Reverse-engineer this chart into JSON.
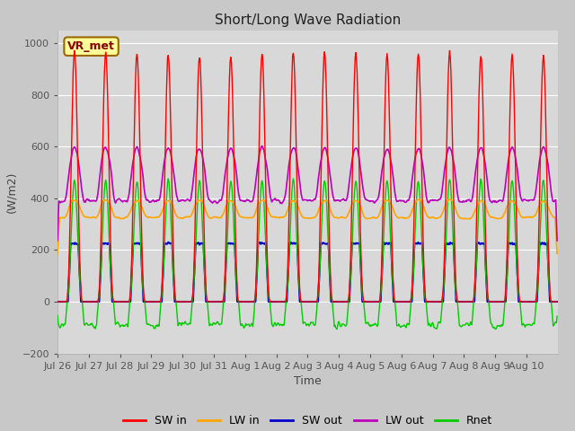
{
  "title": "Short/Long Wave Radiation",
  "ylabel": "(W/m2)",
  "xlabel": "Time",
  "ylim": [
    -200,
    1050
  ],
  "yticks": [
    -200,
    0,
    200,
    400,
    600,
    800,
    1000
  ],
  "fig_bg_color": "#c8c8c8",
  "plot_bg_color": "#d8d8d8",
  "grid_color": "#ffffff",
  "series": {
    "SW_in": {
      "color": "#ff0000",
      "label": "SW in",
      "lw": 1.0
    },
    "LW_in": {
      "color": "#ffa500",
      "label": "LW in",
      "lw": 1.2
    },
    "SW_out": {
      "color": "#0000cc",
      "label": "SW out",
      "lw": 1.5
    },
    "LW_out": {
      "color": "#bb00bb",
      "label": "LW out",
      "lw": 1.2
    },
    "Rnet": {
      "color": "#00cc00",
      "label": "Rnet",
      "lw": 1.0
    }
  },
  "annotation": {
    "text": "VR_met",
    "fontsize": 9,
    "boxstyle": "round,pad=0.3",
    "facecolor": "#ffff99",
    "edgecolor": "#996600"
  },
  "n_days": 16,
  "tick_labels": [
    "Jul 26",
    "Jul 27",
    "Jul 28",
    "Jul 29",
    "Jul 30",
    "Jul 31",
    "Aug 1",
    "Aug 2",
    "Aug 3",
    "Aug 4",
    "Aug 5",
    "Aug 6",
    "Aug 7",
    "Aug 8",
    "Aug 9",
    "Aug 10"
  ],
  "SW_in_peaks": [
    970,
    965,
    960,
    955,
    950,
    945,
    960,
    960,
    965,
    960,
    955,
    960,
    965,
    950,
    955,
    950
  ],
  "LW_in_base": 325,
  "LW_in_day_add": 70,
  "SW_out_max": 225,
  "LW_out_night": 390,
  "LW_out_day_peak": 620,
  "Rnet_day_peak": 475,
  "Rnet_night": -90
}
